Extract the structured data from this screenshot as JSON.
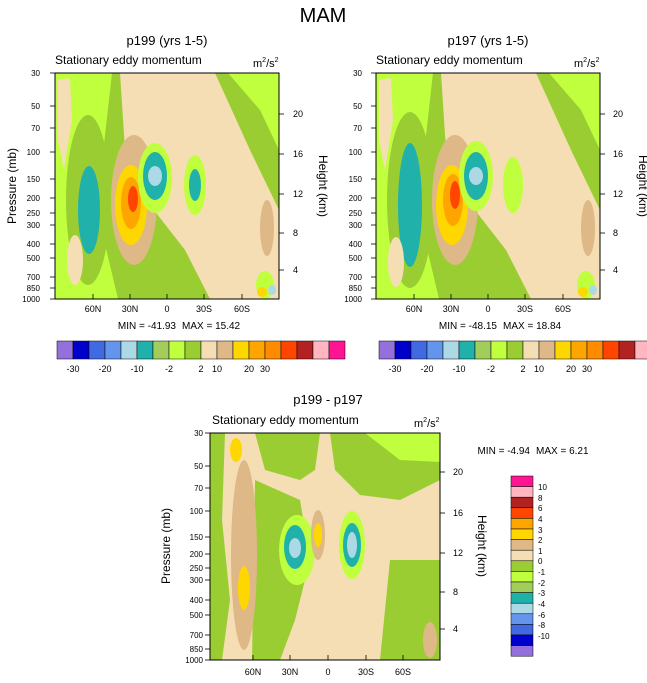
{
  "figure_title": "MAM",
  "unit_label": {
    "base": "m",
    "sup1": "2",
    "mid": "/s",
    "sup2": "2"
  },
  "colors": {
    "levels_abs": [
      "#9370DB",
      "#0000CD",
      "#4169E1",
      "#6495ED",
      "#ADD8E6",
      "#20B2AA",
      "#A2CD5A",
      "#C0FF3E",
      "#9ACD32",
      "#F5DEB3",
      "#DEB887",
      "#FFD700",
      "#FFA500",
      "#FF8C00",
      "#FF4500",
      "#B22222",
      "#FFB6C1",
      "#FF1493"
    ],
    "levels_diff": [
      "#9370DB",
      "#0000CD",
      "#4169E1",
      "#6495ED",
      "#ADD8E6",
      "#20B2AA",
      "#A2CD5A",
      "#C0FF3E",
      "#9ACD32",
      "#F5DEB3",
      "#DEB887",
      "#FFD700",
      "#FFA500",
      "#FF4500",
      "#B22222",
      "#FFB6C1",
      "#FF1493"
    ]
  },
  "chart_data": [
    {
      "type": "heatmap",
      "panel": "p199",
      "title": "p199 (yrs 1-5)",
      "subtitle": "Stationary eddy momentum",
      "ylabel": "Pressure (mb)",
      "y2label": "Height (km)",
      "x_ticks": [
        "60N",
        "30N",
        "0",
        "30S",
        "60S"
      ],
      "x_range": [
        90,
        -90
      ],
      "y_ticks": [
        "30",
        "50",
        "70",
        "100",
        "150",
        "200",
        "250",
        "300",
        "400",
        "500",
        "700",
        "850",
        "1000"
      ],
      "y2_ticks": [
        "4",
        "8",
        "12",
        "16",
        "20"
      ],
      "y_range_mb": [
        30,
        1000
      ],
      "scale": "log pressure",
      "stats_min_label": "MIN = -41.93",
      "stats_max_label": "MAX =  15.42",
      "min": -41.93,
      "max": 15.42
    },
    {
      "type": "heatmap",
      "panel": "p197",
      "title": "p197 (yrs 1-5)",
      "subtitle": "Stationary eddy momentum",
      "ylabel": "Pressure (mb)",
      "y2label": "Height (km)",
      "x_ticks": [
        "60N",
        "30N",
        "0",
        "30S",
        "60S"
      ],
      "x_range": [
        90,
        -90
      ],
      "y_ticks": [
        "30",
        "50",
        "70",
        "100",
        "150",
        "200",
        "250",
        "300",
        "400",
        "500",
        "700",
        "850",
        "1000"
      ],
      "y2_ticks": [
        "4",
        "8",
        "12",
        "16",
        "20"
      ],
      "y_range_mb": [
        30,
        1000
      ],
      "scale": "log pressure",
      "stats_min_label": "MIN = -48.15",
      "stats_max_label": "MAX =  18.84",
      "min": -48.15,
      "max": 18.84
    },
    {
      "type": "heatmap",
      "panel": "diff",
      "title": "p199 - p197",
      "subtitle": "Stationary eddy momentum",
      "ylabel": "Pressure (mb)",
      "y2label": "Height (km)",
      "x_ticks": [
        "60N",
        "30N",
        "0",
        "30S",
        "60S"
      ],
      "x_range": [
        90,
        -90
      ],
      "y_ticks": [
        "30",
        "50",
        "70",
        "100",
        "150",
        "200",
        "250",
        "300",
        "400",
        "500",
        "700",
        "850",
        "1000"
      ],
      "y2_ticks": [
        "4",
        "8",
        "12",
        "16",
        "20"
      ],
      "y_range_mb": [
        30,
        1000
      ],
      "scale": "log pressure",
      "stats_min_label": "MIN =  -4.94",
      "stats_max_label": "MAX =   6.21",
      "min": -4.94,
      "max": 6.21
    }
  ],
  "colorbar_abs_labels": [
    "-30",
    "-20",
    "-10",
    "-2",
    "2",
    "10",
    "20",
    "30"
  ],
  "colorbar_diff_labels": [
    "10",
    "8",
    "6",
    "4",
    "3",
    "2",
    "1",
    "0",
    "-1",
    "-2",
    "-3",
    "-4",
    "-6",
    "-8",
    "-10"
  ]
}
